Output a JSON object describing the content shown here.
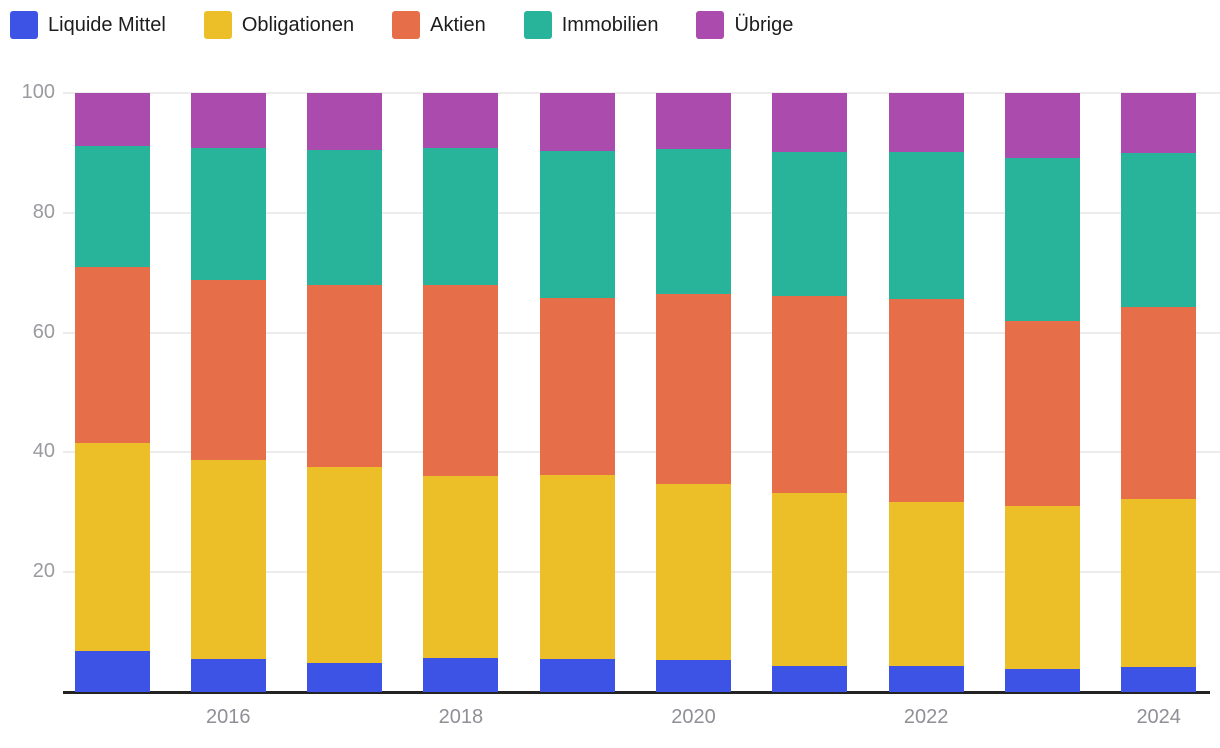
{
  "chart_data": {
    "type": "bar",
    "stacked": true,
    "title": "",
    "xlabel": "",
    "ylabel": "",
    "ylim": [
      0,
      100
    ],
    "y_ticks": [
      20,
      40,
      60,
      80,
      100
    ],
    "grid": true,
    "legend_position": "top-left",
    "categories": [
      "2015",
      "2016",
      "2017",
      "2018",
      "2019",
      "2020",
      "2021",
      "2022",
      "2023",
      "2024"
    ],
    "x_tick_labels": [
      "2016",
      "2018",
      "2020",
      "2022",
      "2024"
    ],
    "x_tick_category_indices": [
      1,
      3,
      5,
      7,
      9
    ],
    "series": [
      {
        "name": "Liquide Mittel",
        "color": "#3d53e6",
        "values": [
          6.8,
          5.5,
          4.8,
          5.7,
          5.5,
          5.4,
          4.3,
          4.3,
          3.9,
          4.1
        ]
      },
      {
        "name": "Obligationen",
        "color": "#ecbe27",
        "values": [
          34.7,
          33.3,
          32.7,
          30.3,
          30.8,
          29.3,
          29.0,
          27.5,
          27.1,
          28.1
        ]
      },
      {
        "name": "Aktien",
        "color": "#e66f4a",
        "values": [
          29.4,
          30.0,
          30.5,
          31.9,
          29.4,
          31.7,
          32.8,
          33.8,
          31.0,
          32.0
        ]
      },
      {
        "name": "Immobilien",
        "color": "#28b39b",
        "values": [
          20.3,
          22.0,
          22.5,
          22.9,
          24.6,
          24.2,
          24.1,
          24.6,
          27.2,
          25.8
        ]
      },
      {
        "name": "Übrige",
        "color": "#ab4bad",
        "values": [
          8.8,
          9.2,
          9.5,
          9.2,
          9.7,
          9.4,
          9.8,
          9.8,
          10.8,
          10.0
        ]
      }
    ],
    "style": {
      "background": "#ffffff",
      "grid_color": "#ececec",
      "axis_line_color": "#232323",
      "tick_label_color": "#9a9aa0",
      "legend_text_color": "#1d1d1d"
    }
  }
}
